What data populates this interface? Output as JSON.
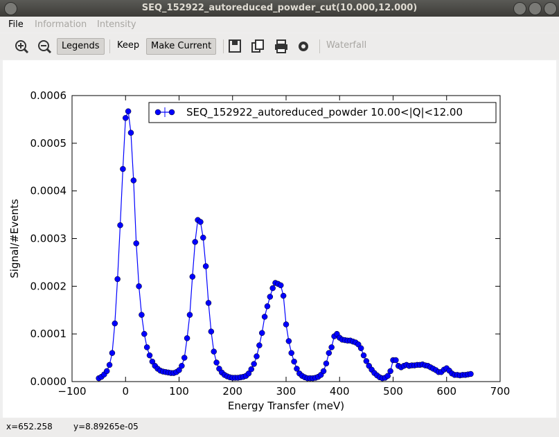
{
  "window": {
    "title": "SEQ_152922_autoreduced_powder_cut(10.000,12.000)"
  },
  "menu": [
    "File",
    "Information",
    "Intensity"
  ],
  "toolbar": {
    "legends": "Legends",
    "keep": "Keep",
    "make_current": "Make Current",
    "waterfall": "Waterfall"
  },
  "status": {
    "x": "x=652.258",
    "y": "y=8.89265e-05"
  },
  "chart_data": {
    "type": "line",
    "xlabel": "Energy Transfer (meV)",
    "ylabel": "Signal/#Events",
    "xlim": [
      -100,
      700
    ],
    "ylim": [
      0,
      0.0006
    ],
    "xticks": [
      {
        "value": -100,
        "label": "−100"
      },
      0,
      100,
      200,
      300,
      400,
      500,
      600,
      700
    ],
    "yticks": [
      {
        "value": 0,
        "label": "0.0000"
      },
      {
        "value": 0.0001,
        "label": "0.0001"
      },
      {
        "value": 0.0002,
        "label": "0.0002"
      },
      {
        "value": 0.0003,
        "label": "0.0003"
      },
      {
        "value": 0.0004,
        "label": "0.0004"
      },
      {
        "value": 0.0005,
        "label": "0.0005"
      },
      {
        "value": 0.0006,
        "label": "0.0006"
      }
    ],
    "legend": "upper right",
    "x": [
      -50,
      -45,
      -40,
      -35,
      -30,
      -25,
      -20,
      -15,
      -10,
      -5,
      0,
      5,
      10,
      15,
      20,
      25,
      30,
      35,
      40,
      45,
      50,
      55,
      60,
      65,
      70,
      75,
      80,
      85,
      90,
      95,
      100,
      105,
      110,
      115,
      120,
      125,
      130,
      135,
      140,
      145,
      150,
      155,
      160,
      165,
      170,
      175,
      180,
      185,
      190,
      195,
      200,
      205,
      210,
      215,
      220,
      225,
      230,
      235,
      240,
      245,
      250,
      255,
      260,
      265,
      270,
      275,
      280,
      285,
      290,
      295,
      300,
      305,
      310,
      315,
      320,
      325,
      330,
      335,
      340,
      345,
      350,
      355,
      360,
      365,
      370,
      375,
      380,
      385,
      390,
      395,
      400,
      405,
      410,
      415,
      420,
      425,
      430,
      435,
      440,
      445,
      450,
      455,
      460,
      465,
      470,
      475,
      480,
      485,
      490,
      495,
      500,
      505,
      510,
      515,
      520,
      525,
      530,
      535,
      540,
      545,
      550,
      555,
      560,
      565,
      570,
      575,
      580,
      585,
      590,
      595,
      600,
      605,
      610,
      615,
      620,
      625,
      630,
      635,
      640,
      645
    ],
    "series": [
      {
        "name": "SEQ_152922_autoreduced_powder 10.00<|Q|<12.00",
        "color": "#0000ff",
        "values": [
          7e-06,
          1e-05,
          1.5e-05,
          2.2e-05,
          3.5e-05,
          6e-05,
          0.000122,
          0.000215,
          0.000328,
          0.000446,
          0.000553,
          0.000567,
          0.000522,
          0.000422,
          0.00029,
          0.0002,
          0.00014,
          0.0001,
          7.2e-05,
          5.5e-05,
          4.2e-05,
          3.3e-05,
          2.7e-05,
          2.3e-05,
          2.1e-05,
          2e-05,
          1.9e-05,
          1.8e-05,
          1.8e-05,
          2e-05,
          2.4e-05,
          3.3e-05,
          5e-05,
          9.1e-05,
          0.00014,
          0.00022,
          0.000293,
          0.000339,
          0.000335,
          0.000302,
          0.000242,
          0.000165,
          0.000105,
          6.3e-05,
          4e-05,
          2.7e-05,
          1.9e-05,
          1.4e-05,
          1.1e-05,
          9e-06,
          8e-06,
          8e-06,
          8e-06,
          9e-06,
          1e-05,
          1.2e-05,
          1.7e-05,
          2.6e-05,
          3.7e-05,
          5.3e-05,
          7.6e-05,
          0.000102,
          0.000136,
          0.000158,
          0.000178,
          0.000196,
          0.000207,
          0.000205,
          0.000202,
          0.00018,
          0.00012,
          8.5e-05,
          6e-05,
          4.2e-05,
          2.7e-05,
          1.7e-05,
          1.2e-05,
          9e-06,
          7e-06,
          7e-06,
          7e-06,
          8e-06,
          1e-05,
          1.4e-05,
          2.2e-05,
          3.8e-05,
          6e-05,
          7.2e-05,
          9.5e-05,
          0.0001,
          9.2e-05,
          8.8e-05,
          8.7e-05,
          8.6e-05,
          8.6e-05,
          8.4e-05,
          8.2e-05,
          7.8e-05,
          7e-05,
          5.5e-05,
          4.3e-05,
          3.3e-05,
          2.5e-05,
          1.8e-05,
          1.3e-05,
          9e-06,
          7e-06,
          8e-06,
          1.2e-05,
          2.2e-05,
          4.5e-05,
          4.5e-05,
          3.3e-05,
          3e-05,
          3.3e-05,
          3.5e-05,
          3.3e-05,
          3.4e-05,
          3.4e-05,
          3.5e-05,
          3.5e-05,
          3.6e-05,
          3.4e-05,
          3.3e-05,
          3e-05,
          2.7e-05,
          2.4e-05,
          2e-05,
          2e-05,
          2.5e-05,
          2.8e-05,
          2.3e-05,
          1.7e-05,
          1.4e-05,
          1.4e-05,
          1.3e-05,
          1.4e-05,
          1.4e-05,
          1.5e-05,
          1.6e-05
        ]
      }
    ]
  }
}
